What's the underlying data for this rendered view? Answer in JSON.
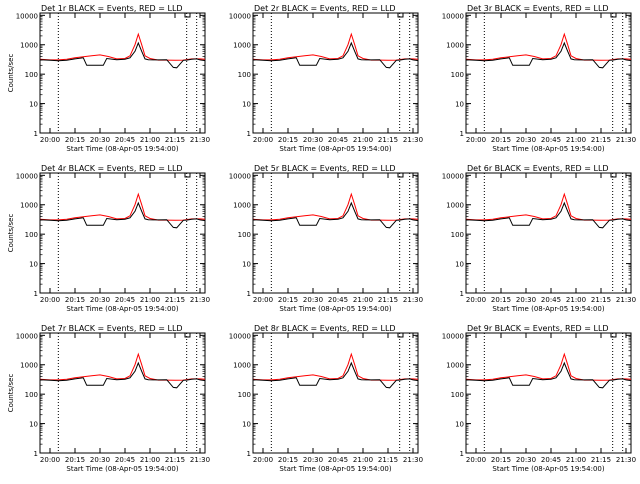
{
  "chart_data": [
    {
      "type": "line",
      "title": "Det 1r BLACK = Events, RED = LLD",
      "xlabel": "Start Time (08-Apr-05 19:54:00)",
      "ylabel": "Counts/sec"
    },
    {
      "type": "line",
      "title": "Det 2r BLACK = Events, RED = LLD",
      "xlabel": "Start Time (08-Apr-05 19:54:00)",
      "ylabel": ""
    },
    {
      "type": "line",
      "title": "Det 3r BLACK = Events, RED = LLD",
      "xlabel": "Start Time (08-Apr-05 19:54:00)",
      "ylabel": ""
    },
    {
      "type": "line",
      "title": "Det 4r BLACK = Events, RED = LLD",
      "xlabel": "Start Time (08-Apr-05 19:54:00)",
      "ylabel": "Counts/sec"
    },
    {
      "type": "line",
      "title": "Det 5r BLACK = Events, RED = LLD",
      "xlabel": "Start Time (08-Apr-05 19:54:00)",
      "ylabel": ""
    },
    {
      "type": "line",
      "title": "Det 6r BLACK = Events, RED = LLD",
      "xlabel": "Start Time (08-Apr-05 19:54:00)",
      "ylabel": ""
    },
    {
      "type": "line",
      "title": "Det 7r BLACK = Events, RED = LLD",
      "xlabel": "Start Time (08-Apr-05 19:54:00)",
      "ylabel": "Counts/sec"
    },
    {
      "type": "line",
      "title": "Det 8r BLACK = Events, RED = LLD",
      "xlabel": "Start Time (08-Apr-05 19:54:00)",
      "ylabel": ""
    },
    {
      "type": "line",
      "title": "Det 9r BLACK = Events, RED = LLD",
      "xlabel": "Start Time (08-Apr-05 19:54:00)",
      "ylabel": ""
    }
  ],
  "axes": {
    "x_ticks": [
      "20:00",
      "20:15",
      "20:30",
      "20:45",
      "21:00",
      "21:15",
      "21:30"
    ],
    "x_tick_minutes": [
      0,
      15,
      30,
      45,
      60,
      75,
      90
    ],
    "xlim_minutes_after_20_00": [
      -6,
      93
    ],
    "y_scale": "log",
    "ylim": [
      1,
      12000
    ],
    "y_tick_values": [
      1,
      10,
      100,
      1000,
      10000
    ],
    "y_ticks": [
      "1",
      "10",
      "100",
      "1000",
      "10000"
    ],
    "dotted_lines_minutes": [
      5,
      82,
      88
    ],
    "grid": false
  },
  "series": {
    "events": {
      "color": "#000000",
      "minutes": [
        -6,
        0,
        5,
        10,
        15,
        20,
        22,
        24,
        30,
        32,
        34,
        40,
        45,
        48,
        51,
        53,
        55,
        57,
        59,
        62,
        65,
        70,
        74,
        76,
        80,
        82,
        85,
        88,
        90,
        93
      ],
      "values": [
        310,
        295,
        285,
        295,
        330,
        360,
        200,
        200,
        200,
        200,
        340,
        310,
        320,
        360,
        600,
        1150,
        600,
        330,
        310,
        305,
        305,
        310,
        170,
        165,
        295,
        300,
        320,
        330,
        305,
        290
      ]
    },
    "lld": {
      "color": "#ff0000",
      "minutes": [
        -6,
        0,
        5,
        10,
        15,
        20,
        25,
        30,
        35,
        40,
        45,
        48,
        51,
        53,
        55,
        57,
        60,
        65,
        70,
        75,
        80,
        85,
        90,
        93
      ],
      "values": [
        320,
        305,
        305,
        320,
        360,
        390,
        420,
        450,
        400,
        330,
        340,
        420,
        1000,
        2300,
        1000,
        420,
        340,
        300,
        300,
        295,
        300,
        330,
        330,
        320
      ]
    }
  }
}
